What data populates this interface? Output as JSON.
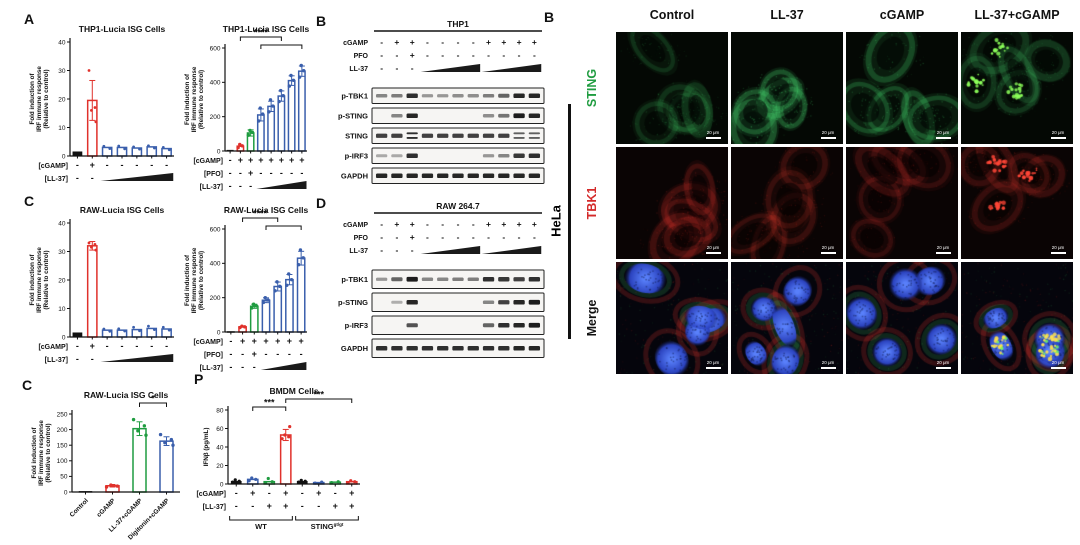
{
  "palette": {
    "black": "#111111",
    "red": "#e0312b",
    "green": "#1f9c40",
    "blue": "#3a5fac"
  },
  "panel_letters": {
    "a": "A",
    "b_blot": "B",
    "c_mid": "C",
    "d": "D",
    "c_bottom": "C",
    "p": "P",
    "b_micro": "B"
  },
  "chart_data": [
    {
      "id": "a1",
      "type": "bar",
      "title": "THP1-Lucia ISG Cells",
      "ylabel": [
        "Fold induction of",
        "IRF immune response",
        "(Relative to control)"
      ],
      "ylim": [
        0,
        40
      ],
      "yticks": [
        0,
        10,
        20,
        30,
        40
      ],
      "dotr": 1.4,
      "bars": [
        {
          "v": 1.5,
          "c": "black"
        },
        {
          "v": 19.5,
          "c": "red",
          "err": 7,
          "dots": [
            30,
            17,
            16,
            12
          ]
        },
        {
          "v": 3,
          "c": "blue",
          "dots": [
            3.4,
            2.6
          ]
        },
        {
          "v": 3,
          "c": "blue",
          "dots": [
            3.5,
            2.5
          ]
        },
        {
          "v": 2.8,
          "c": "blue",
          "dots": [
            3.2,
            2.4
          ]
        },
        {
          "v": 3.2,
          "c": "blue",
          "dots": [
            3.6,
            2.8
          ]
        },
        {
          "v": 2.6,
          "c": "blue",
          "dots": [
            3,
            2.2
          ]
        }
      ],
      "xrows": [
        {
          "label": "[cGAMP]",
          "symbols": [
            "-",
            "+",
            "-",
            "-",
            "-",
            "-",
            "-"
          ]
        },
        {
          "label": "[LL-37]",
          "symbols": [
            "-",
            "-"
          ],
          "ramps": [
            {
              "from": 2,
              "to": 6
            }
          ]
        }
      ]
    },
    {
      "id": "a2",
      "type": "bar",
      "title": "THP1-Lucia ISG Cells",
      "ylabel": [
        "Fold induction of",
        "IRF immune response",
        "(Relative to control)"
      ],
      "ylim": [
        0,
        600
      ],
      "yticks": [
        0,
        200,
        400,
        600
      ],
      "dotr": 1.7,
      "bars": [
        {
          "v": 5,
          "c": "black"
        },
        {
          "v": 28,
          "c": "red",
          "dots": [
            20,
            30,
            38
          ]
        },
        {
          "v": 105,
          "c": "green",
          "err": 18,
          "dots": [
            92,
            108,
            120
          ]
        },
        {
          "v": 210,
          "c": "blue",
          "err": 35,
          "dots": [
            175,
            215,
            250
          ]
        },
        {
          "v": 260,
          "c": "blue",
          "err": 30,
          "dots": [
            228,
            262,
            298
          ]
        },
        {
          "v": 320,
          "c": "blue",
          "err": 30,
          "dots": [
            288,
            322,
            352
          ]
        },
        {
          "v": 410,
          "c": "blue",
          "err": 28,
          "dots": [
            378,
            412,
            440
          ]
        },
        {
          "v": 465,
          "c": "blue",
          "err": 30,
          "dots": [
            430,
            468,
            498
          ]
        }
      ],
      "sig": [
        {
          "from": 1,
          "to": 5,
          "stars": "****",
          "lvl": 0
        },
        {
          "from": 3,
          "to": 7,
          "stars": "",
          "lvl": 1
        }
      ],
      "xrows": [
        {
          "label": "[cGAMP]",
          "symbols": [
            "-",
            "+",
            "+",
            "+",
            "+",
            "+",
            "+",
            "+"
          ]
        },
        {
          "label": "[PFO]",
          "symbols": [
            "-",
            "-",
            "+",
            "-",
            "-",
            "-",
            "-",
            "-"
          ]
        },
        {
          "label": "[LL-37]",
          "symbols": [
            "-",
            "-",
            "-"
          ],
          "ramps": [
            {
              "from": 3,
              "to": 7
            }
          ]
        }
      ]
    },
    {
      "id": "c1",
      "type": "bar",
      "title": "RAW-Lucia ISG Cells",
      "ylabel": [
        "Fold induction of",
        "IRF immune response",
        "(Relative to control)"
      ],
      "ylim": [
        0,
        40
      ],
      "yticks": [
        0,
        10,
        20,
        30,
        40
      ],
      "dotr": 1.4,
      "bars": [
        {
          "v": 1.5,
          "c": "black"
        },
        {
          "v": 32,
          "c": "red",
          "err": 1.5,
          "dots": [
            33,
            32.5,
            31.5,
            30.5
          ]
        },
        {
          "v": 2.4,
          "c": "blue",
          "dots": [
            2.8,
            2
          ]
        },
        {
          "v": 2.4,
          "c": "blue",
          "dots": [
            2.9,
            2.1
          ]
        },
        {
          "v": 2.6,
          "c": "blue",
          "dots": [
            3.4,
            2.2
          ]
        },
        {
          "v": 3,
          "c": "blue",
          "dots": [
            3.8,
            2.6
          ]
        },
        {
          "v": 2.8,
          "c": "blue",
          "dots": [
            3.4,
            2.4
          ]
        }
      ],
      "xrows": [
        {
          "label": "[cGAMP]",
          "symbols": [
            "-",
            "+",
            "-",
            "-",
            "-",
            "-",
            "-"
          ]
        },
        {
          "label": "[LL-37]",
          "symbols": [
            "-",
            "-"
          ],
          "ramps": [
            {
              "from": 2,
              "to": 6
            }
          ]
        }
      ]
    },
    {
      "id": "c2",
      "type": "bar",
      "title": "RAW-Lucia ISG Cells",
      "ylabel": [
        "Fold induction of",
        "IRF immune response",
        "(Relative to control)"
      ],
      "ylim": [
        0,
        600
      ],
      "yticks": [
        0,
        200,
        400,
        600
      ],
      "dotr": 1.7,
      "bars": [
        {
          "v": 3,
          "c": "black"
        },
        {
          "v": 30,
          "c": "red",
          "dots": [
            26,
            30,
            34
          ]
        },
        {
          "v": 150,
          "c": "green",
          "err": 12,
          "dots": [
            140,
            152,
            162
          ]
        },
        {
          "v": 185,
          "c": "blue",
          "err": 14,
          "dots": [
            172,
            186,
            200
          ]
        },
        {
          "v": 265,
          "c": "blue",
          "err": 26,
          "dots": [
            240,
            266,
            292
          ]
        },
        {
          "v": 305,
          "c": "blue",
          "err": 30,
          "dots": [
            272,
            305,
            338
          ]
        },
        {
          "v": 430,
          "c": "blue",
          "err": 40,
          "dots": [
            392,
            432,
            478
          ]
        }
      ],
      "sig": [
        {
          "from": 1,
          "to": 4,
          "stars": "****",
          "lvl": 0
        },
        {
          "from": 3,
          "to": 6,
          "stars": "",
          "lvl": 1
        }
      ],
      "xrows": [
        {
          "label": "[cGAMP]",
          "symbols": [
            "-",
            "+",
            "+",
            "+",
            "+",
            "+",
            "+"
          ]
        },
        {
          "label": "[PFO]",
          "symbols": [
            "-",
            "-",
            "+",
            "-",
            "-",
            "-",
            "-"
          ]
        },
        {
          "label": "[LL-37]",
          "symbols": [
            "-",
            "-",
            "-"
          ],
          "ramps": [
            {
              "from": 3,
              "to": 6
            }
          ]
        }
      ]
    },
    {
      "id": "c3",
      "type": "bar",
      "title": "RAW-Lucia ISG Cells",
      "ylabel": [
        "Fold induction of",
        "IRF immune response",
        "(Relative to control)"
      ],
      "ylim": [
        0,
        250
      ],
      "yticks": [
        0,
        50,
        100,
        150,
        200,
        250
      ],
      "dotr": 1.7,
      "categories": [
        "Control",
        "cGAMP",
        "LL-37+cGAMP",
        "Digitonin+cGAMP"
      ],
      "bars": [
        {
          "v": 2,
          "c": "black"
        },
        {
          "v": 20,
          "c": "red",
          "err": 4,
          "dots": [
            16,
            19,
            22
          ]
        },
        {
          "v": 203,
          "c": "green",
          "err": 22,
          "dots": [
            232,
            212,
            196,
            182
          ]
        },
        {
          "v": 163,
          "c": "blue",
          "err": 14,
          "dots": [
            184,
            168,
            158,
            150
          ]
        }
      ],
      "sig": [
        {
          "from": 2,
          "to": 3,
          "stars": "*",
          "lvl": 0
        }
      ],
      "rot_labels": true
    },
    {
      "id": "p",
      "type": "bar",
      "title": "BMDM Cells",
      "ylabel": [
        "IFNβ (pg/mL)"
      ],
      "ylim": [
        0,
        80
      ],
      "yticks": [
        0,
        20,
        40,
        60,
        80
      ],
      "dotr": 1.6,
      "bars": [
        {
          "v": 3,
          "c": "black",
          "dots": [
            2,
            3,
            4.5
          ]
        },
        {
          "v": 5,
          "c": "blue",
          "dots": [
            3.5,
            5,
            6.5
          ]
        },
        {
          "v": 2.5,
          "c": "green",
          "dots": [
            1.5,
            2.5,
            6
          ]
        },
        {
          "v": 53,
          "c": "red",
          "err": 6,
          "dots": [
            49,
            51,
            53,
            62
          ]
        },
        {
          "v": 3,
          "c": "black",
          "dots": [
            2,
            3,
            4
          ]
        },
        {
          "v": 1.5,
          "c": "blue",
          "dots": [
            1,
            2
          ]
        },
        {
          "v": 2,
          "c": "green",
          "dots": [
            1.5,
            2.5
          ]
        },
        {
          "v": 2.5,
          "c": "red",
          "dots": [
            1.5,
            2.5,
            3.5
          ]
        }
      ],
      "sig": [
        {
          "from": 3,
          "to": 7,
          "stars": "***",
          "lvl": 0
        },
        {
          "from": 1,
          "to": 3,
          "stars": "***",
          "lvl": 1
        }
      ],
      "xrows": [
        {
          "label": "[cGAMP]",
          "symbols": [
            "-",
            "+",
            "-",
            "+",
            "-",
            "+",
            "-",
            "+"
          ]
        },
        {
          "label": "[LL-37]",
          "symbols": [
            "-",
            "-",
            "+",
            "+",
            "-",
            "-",
            "+",
            "+"
          ]
        }
      ],
      "groups": [
        {
          "from": 0,
          "to": 3,
          "label": "WT",
          "sup": ""
        },
        {
          "from": 4,
          "to": 7,
          "label": "STING",
          "sup": "gt/gt"
        }
      ]
    }
  ],
  "blots": [
    {
      "letter": "B",
      "title": "THP1",
      "cond_rows": [
        {
          "label": "cGAMP",
          "symbols": [
            "-",
            "+",
            "+",
            "-",
            "-",
            "-",
            "-",
            "+",
            "+",
            "+",
            "+"
          ]
        },
        {
          "label": "PFO",
          "symbols": [
            "-",
            "-",
            "+",
            "-",
            "-",
            "-",
            "-",
            "-",
            "-",
            "-",
            "-"
          ]
        },
        {
          "label": "LL-37",
          "symbols": [
            "-",
            "-",
            "-"
          ],
          "ramps": [
            {
              "from": 3,
              "to": 6
            },
            {
              "from": 7,
              "to": 10
            }
          ]
        }
      ],
      "bands": [
        {
          "label": "p-TBK1",
          "lanes": [
            0.35,
            0.4,
            0.85,
            0.25,
            0.25,
            0.3,
            0.3,
            0.4,
            0.55,
            0.9,
            0.9
          ]
        },
        {
          "label": "p-STING",
          "lanes": [
            0,
            0.35,
            0.9,
            0,
            0,
            0,
            0,
            0.3,
            0.45,
            0.95,
            0.9
          ]
        },
        {
          "label": "STING",
          "lanes": [
            0.75,
            0.75,
            0.85,
            0.75,
            0.75,
            0.75,
            0.75,
            0.75,
            0.75,
            0.55,
            0.55
          ],
          "doublet": [
            2,
            9,
            10
          ]
        },
        {
          "label": "p-IRF3",
          "lanes": [
            0.15,
            0.15,
            0.85,
            0,
            0,
            0,
            0,
            0.25,
            0.35,
            0.8,
            0.85
          ]
        },
        {
          "label": "GAPDH",
          "lanes": [
            0.9,
            0.9,
            0.9,
            0.9,
            0.9,
            0.9,
            0.9,
            0.9,
            0.9,
            0.9,
            0.9
          ]
        }
      ]
    },
    {
      "letter": "D",
      "title": "RAW 264.7",
      "cond_rows": [
        {
          "label": "cGAMP",
          "symbols": [
            "-",
            "+",
            "+",
            "-",
            "-",
            "-",
            "-",
            "+",
            "+",
            "+",
            "+"
          ]
        },
        {
          "label": "PFO",
          "symbols": [
            "-",
            "-",
            "+",
            "-",
            "-",
            "-",
            "-",
            "-",
            "-",
            "-",
            "-"
          ]
        },
        {
          "label": "LL-37",
          "symbols": [
            "-",
            "-",
            "-"
          ],
          "ramps": [
            {
              "from": 3,
              "to": 6
            },
            {
              "from": 7,
              "to": 10
            }
          ]
        }
      ],
      "bands": [
        {
          "label": "p-TBK1",
          "lanes": [
            0.25,
            0.55,
            0.95,
            0.35,
            0.35,
            0.4,
            0.4,
            0.85,
            0.8,
            0.75,
            0.85
          ]
        },
        {
          "label": "p-STING",
          "lanes": [
            0,
            0.12,
            0.9,
            0,
            0,
            0,
            0,
            0.35,
            0.75,
            0.9,
            0.95
          ]
        },
        {
          "label": "p-IRF3",
          "lanes": [
            0,
            0,
            0.65,
            0,
            0,
            0,
            0,
            0.55,
            0.85,
            0.9,
            0.95
          ]
        },
        {
          "label": "GAPDH",
          "lanes": [
            0.85,
            0.85,
            0.85,
            0.85,
            0.85,
            0.85,
            0.85,
            0.85,
            0.85,
            0.9,
            0.9
          ]
        }
      ]
    }
  ],
  "microscopy": {
    "cell_line": "HeLa",
    "scale_bar": "20 μm",
    "columns": [
      "Control",
      "LL-37",
      "cGAMP",
      "LL-37+cGAMP"
    ],
    "rows": [
      {
        "label": "STING",
        "color": "#1f9c40"
      },
      {
        "label": "TBK1",
        "color": "#d42a2a"
      },
      {
        "label": "Merge",
        "color": "#111111"
      }
    ],
    "appearance": {
      "green_brightness": [
        0.5,
        0.9,
        0.78,
        0.55
      ],
      "red_brightness": [
        0.6,
        0.52,
        0.48,
        0.5
      ],
      "puncta_column": 3
    }
  }
}
